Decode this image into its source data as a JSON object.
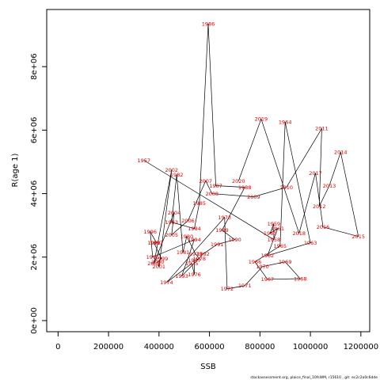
{
  "chart_data": {
    "type": "scatter",
    "connected": true,
    "xlabel": "SSB",
    "ylabel": "R(age 1)",
    "xlim": [
      -45000,
      1235000
    ],
    "ylim": [
      -350000,
      9800000
    ],
    "x_ticks": [
      0,
      200000,
      400000,
      600000,
      800000,
      1000000,
      1200000
    ],
    "x_tick_labels": [
      "0",
      "200000",
      "400000",
      "600000",
      "800000",
      "1000000",
      "1200000"
    ],
    "y_ticks": [
      0,
      2000000,
      4000000,
      6000000,
      8000000
    ],
    "y_tick_labels": [
      "0e+00",
      "2e+06",
      "4e+06",
      "6e+06",
      "8e+06"
    ],
    "label_color": "#dd0000",
    "line_color": "#000000",
    "points": [
      {
        "year": "1957",
        "x": 340000,
        "y": 5050000
      },
      {
        "year": "1958",
        "x": 855000,
        "y": 2550000
      },
      {
        "year": "1959",
        "x": 855000,
        "y": 3050000
      },
      {
        "year": "1960",
        "x": 840000,
        "y": 2750000
      },
      {
        "year": "1961",
        "x": 870000,
        "y": 2900000
      },
      {
        "year": "1962",
        "x": 830000,
        "y": 2050000
      },
      {
        "year": "1963",
        "x": 1000000,
        "y": 2450000
      },
      {
        "year": "1964",
        "x": 900000,
        "y": 6250000
      },
      {
        "year": "1965",
        "x": 880000,
        "y": 2350000
      },
      {
        "year": "1966",
        "x": 780000,
        "y": 1850000
      },
      {
        "year": "1967",
        "x": 830000,
        "y": 1300000
      },
      {
        "year": "1968",
        "x": 960000,
        "y": 1320000
      },
      {
        "year": "1969",
        "x": 900000,
        "y": 1850000
      },
      {
        "year": "1970",
        "x": 810000,
        "y": 1700000
      },
      {
        "year": "1971",
        "x": 740000,
        "y": 1100000
      },
      {
        "year": "1972",
        "x": 670000,
        "y": 1000000
      },
      {
        "year": "1973",
        "x": 660000,
        "y": 3250000
      },
      {
        "year": "1974",
        "x": 430000,
        "y": 1200000
      },
      {
        "year": "1975",
        "x": 530000,
        "y": 1800000
      },
      {
        "year": "1976",
        "x": 540000,
        "y": 1450000
      },
      {
        "year": "1977",
        "x": 540000,
        "y": 1900000
      },
      {
        "year": "1978",
        "x": 560000,
        "y": 1950000
      },
      {
        "year": "1979",
        "x": 545000,
        "y": 2100000
      },
      {
        "year": "1980",
        "x": 510000,
        "y": 2650000
      },
      {
        "year": "1981",
        "x": 495000,
        "y": 2150000
      },
      {
        "year": "1982",
        "x": 470000,
        "y": 4600000
      },
      {
        "year": "1983",
        "x": 450000,
        "y": 3100000
      },
      {
        "year": "1984",
        "x": 540000,
        "y": 2900000
      },
      {
        "year": "1985",
        "x": 560000,
        "y": 3700000
      },
      {
        "year": "1986",
        "x": 595000,
        "y": 9350000
      },
      {
        "year": "1987",
        "x": 625000,
        "y": 4250000
      },
      {
        "year": "1988",
        "x": 740000,
        "y": 4200000
      },
      {
        "year": "1989",
        "x": 650000,
        "y": 2850000
      },
      {
        "year": "1990",
        "x": 700000,
        "y": 2550000
      },
      {
        "year": "1991",
        "x": 630000,
        "y": 2400000
      },
      {
        "year": "1992",
        "x": 575000,
        "y": 2100000
      },
      {
        "year": "1993",
        "x": 490000,
        "y": 1400000
      },
      {
        "year": "1994",
        "x": 540000,
        "y": 2550000
      },
      {
        "year": "1995",
        "x": 375000,
        "y": 2000000
      },
      {
        "year": "1996",
        "x": 365000,
        "y": 2800000
      },
      {
        "year": "1997",
        "x": 390000,
        "y": 2450000
      },
      {
        "year": "1998",
        "x": 380000,
        "y": 2450000
      },
      {
        "year": "1999",
        "x": 410000,
        "y": 1950000
      },
      {
        "year": "2000",
        "x": 395000,
        "y": 1850000
      },
      {
        "year": "2001",
        "x": 400000,
        "y": 1700000
      },
      {
        "year": "2002",
        "x": 450000,
        "y": 4750000
      },
      {
        "year": "2003",
        "x": 380000,
        "y": 1800000
      },
      {
        "year": "2004",
        "x": 460000,
        "y": 3400000
      },
      {
        "year": "2005",
        "x": 450000,
        "y": 2700000
      },
      {
        "year": "2006",
        "x": 515000,
        "y": 3150000
      },
      {
        "year": "2007",
        "x": 585000,
        "y": 4400000
      },
      {
        "year": "2008",
        "x": 610000,
        "y": 4000000
      },
      {
        "year": "2009",
        "x": 775000,
        "y": 3900000
      },
      {
        "year": "2010",
        "x": 905000,
        "y": 4200000
      },
      {
        "year": "2011",
        "x": 1045000,
        "y": 6050000
      },
      {
        "year": "2012",
        "x": 1035000,
        "y": 3600000
      },
      {
        "year": "2013",
        "x": 1075000,
        "y": 4250000
      },
      {
        "year": "2014",
        "x": 1120000,
        "y": 5300000
      },
      {
        "year": "2015",
        "x": 1190000,
        "y": 2650000
      },
      {
        "year": "2016",
        "x": 1050000,
        "y": 2950000
      },
      {
        "year": "2017",
        "x": 1020000,
        "y": 4650000
      },
      {
        "year": "2018",
        "x": 955000,
        "y": 2750000
      },
      {
        "year": "2019",
        "x": 805000,
        "y": 6350000
      },
      {
        "year": "2020",
        "x": 715000,
        "y": 4400000
      }
    ]
  },
  "footer": {
    "text": "stockassessment.org, plaice_final_10fsWM, r15610 , git: ec2c2a0c6dde"
  }
}
